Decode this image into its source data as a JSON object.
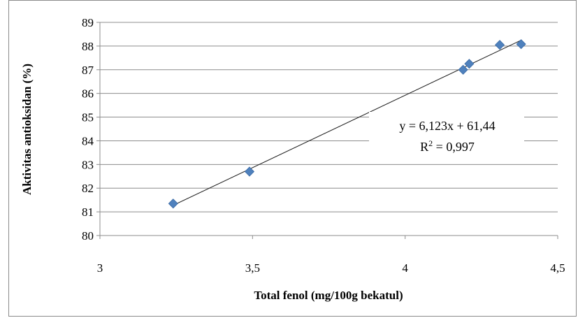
{
  "chart_data": {
    "type": "scatter",
    "title": "",
    "xlabel": "Total fenol (mg/100g bekatul)",
    "ylabel": "Aktivitas antioksidan (%)",
    "xlim": [
      3,
      4.5
    ],
    "ylim": [
      80,
      89
    ],
    "x_ticks": [
      "3",
      "3,5",
      "4",
      "4,5"
    ],
    "y_ticks": [
      "80",
      "81",
      "82",
      "83",
      "84",
      "85",
      "86",
      "87",
      "88",
      "89"
    ],
    "grid": "horizontal",
    "legend": "none",
    "marker_color": "#4f81bd",
    "series": [
      {
        "points": [
          {
            "x": 3.24,
            "y": 81.35
          },
          {
            "x": 3.49,
            "y": 82.7
          },
          {
            "x": 4.19,
            "y": 87.0
          },
          {
            "x": 4.21,
            "y": 87.25
          },
          {
            "x": 4.31,
            "y": 88.05
          },
          {
            "x": 4.38,
            "y": 88.08
          }
        ]
      }
    ],
    "trendline": {
      "type": "linear",
      "x_range": [
        3.24,
        4.38
      ],
      "equation": "y = 6,123x + 61,44",
      "r2_prefix": "R",
      "r2_sup": "2",
      "r2_value": " = 0,997"
    }
  }
}
